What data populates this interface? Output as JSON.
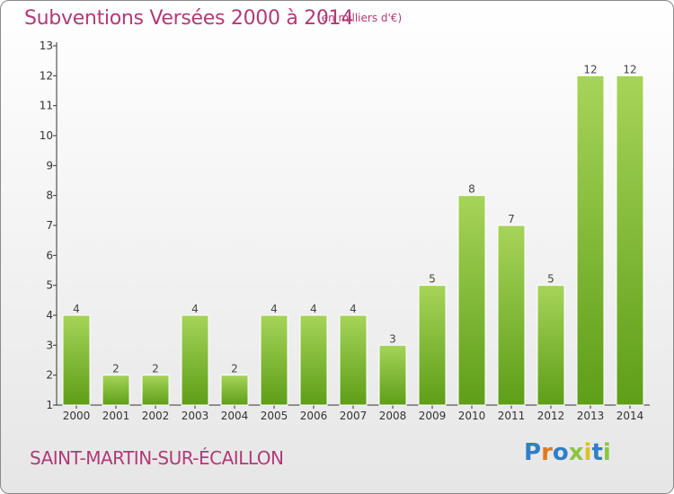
{
  "header": {
    "title": "Subventions Versées 2000 à 2014",
    "subtitle": "(en milliers d'€)"
  },
  "footer": {
    "commune": "SAINT-MARTIN-SUR-ÉCAILLON",
    "logo_text": "Proxiti"
  },
  "colors": {
    "bar_light": "#a6d459",
    "bar_dark": "#5e9e18",
    "title": "#b03a78",
    "axis": "#333333"
  },
  "chart_data": {
    "type": "bar",
    "title": "Subventions Versées 2000 à 2014",
    "subtitle": "(en milliers d'€)",
    "categories": [
      "2000",
      "2001",
      "2002",
      "2003",
      "2004",
      "2005",
      "2006",
      "2007",
      "2008",
      "2009",
      "2010",
      "2011",
      "2012",
      "2013",
      "2014"
    ],
    "values": [
      4,
      2,
      2,
      4,
      2,
      4,
      4,
      4,
      3,
      5,
      8,
      7,
      5,
      12,
      12
    ],
    "data_labels": [
      "4",
      "2",
      "2",
      "4",
      "2",
      "4",
      "4",
      "4",
      "3",
      "5",
      "8",
      "7",
      "5",
      "12",
      "12"
    ],
    "ylim": [
      1,
      13
    ],
    "yticks": [
      1,
      2,
      3,
      4,
      5,
      6,
      7,
      8,
      9,
      10,
      11,
      12,
      13
    ],
    "grid": false,
    "legend": "none"
  }
}
